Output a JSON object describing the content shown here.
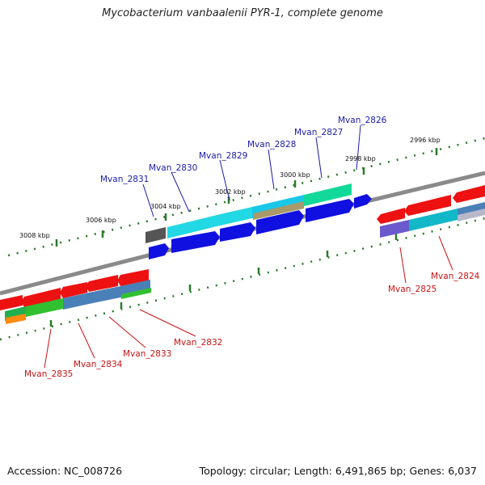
{
  "title": "Mycobacterium vanbaalenii PYR-1, complete genome",
  "footer": {
    "accession": "Accession: NC_008726",
    "topology": "Topology: circular; Length: 6,491,865 bp; Genes: 6,037"
  },
  "colors": {
    "forward_label": "#1a1aaa",
    "reverse_label": "#c81414",
    "backbone": "#8a8a8a",
    "kbp_tick": "#2a7a2a"
  },
  "kbp_ticks": [
    {
      "label": "3008 kbp"
    },
    {
      "label": "3006 kbp"
    },
    {
      "label": "3004 kbp"
    },
    {
      "label": "3002 kbp"
    },
    {
      "label": "3000 kbp"
    },
    {
      "label": "2998 kbp"
    },
    {
      "label": "2996 kbp"
    }
  ],
  "forward_genes": [
    {
      "name": "Mvan_2831"
    },
    {
      "name": "Mvan_2830"
    },
    {
      "name": "Mvan_2829"
    },
    {
      "name": "Mvan_2828"
    },
    {
      "name": "Mvan_2827"
    },
    {
      "name": "Mvan_2826"
    }
  ],
  "reverse_genes": [
    {
      "name": "Mvan_2835"
    },
    {
      "name": "Mvan_2834"
    },
    {
      "name": "Mvan_2833"
    },
    {
      "name": "Mvan_2832"
    },
    {
      "name": "Mvan_2825"
    },
    {
      "name": "Mvan_2824"
    }
  ]
}
